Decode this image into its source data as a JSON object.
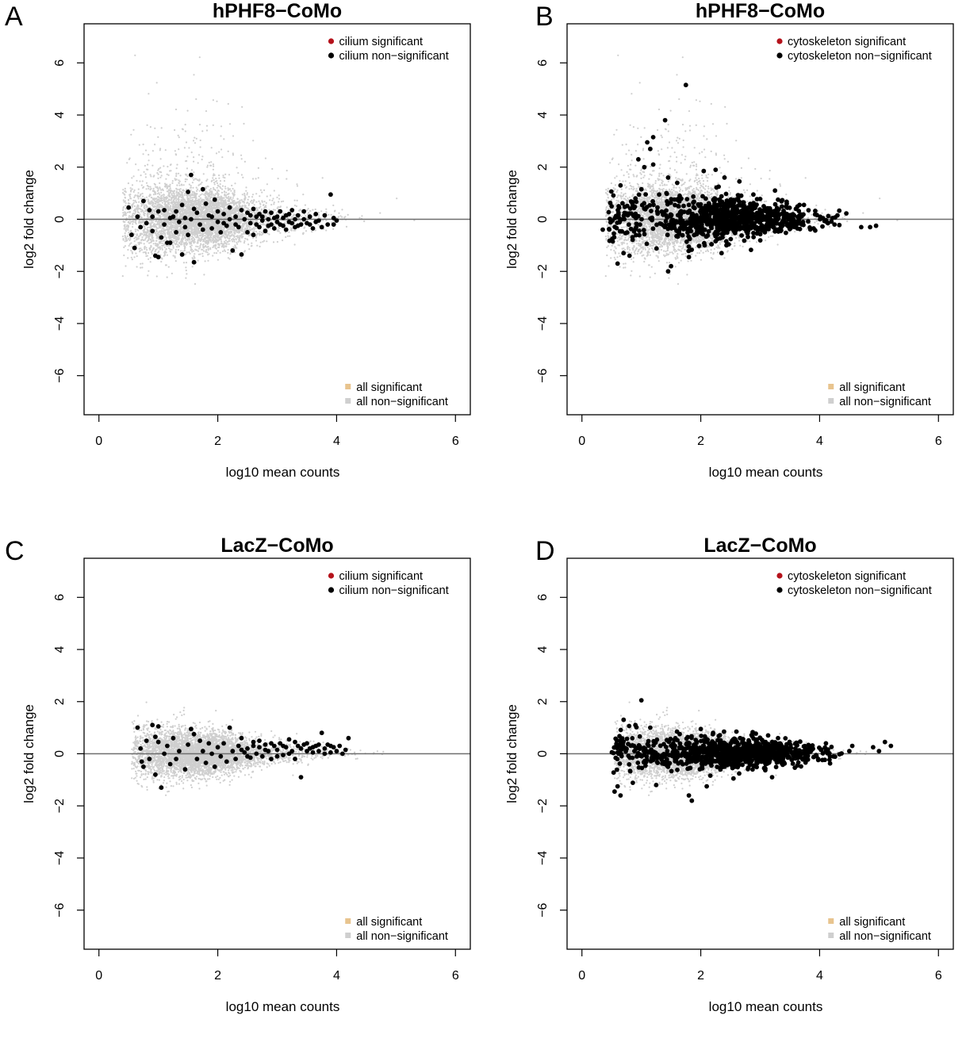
{
  "figure": {
    "colors": {
      "category_significant": "#b5121b",
      "category_nonsignificant": "#000000",
      "all_significant": "#e8c48e",
      "all_nonsignificant": "#cfcfcf",
      "zero_line": "#6e6e6e"
    }
  },
  "chart_data": [
    {
      "id": "A",
      "type": "scatter",
      "panel_letter": "A",
      "title": "hPHF8−CoMo",
      "xlabel": "log10 mean counts",
      "ylabel": "log2 fold change",
      "xlim": [
        -0.25,
        6.25
      ],
      "ylim": [
        -7.5,
        7.5
      ],
      "xticks": [
        0,
        2,
        4,
        6
      ],
      "xtick_labels": [
        "0",
        "2",
        "4",
        "6"
      ],
      "yticks": [
        -6,
        -4,
        -2,
        0,
        2,
        4,
        6
      ],
      "ytick_labels": [
        "−6",
        "−4",
        "−2",
        "0",
        "2",
        "4",
        "6"
      ],
      "reference_line_y": 0,
      "grid": false,
      "legend_top": {
        "placement": "top-right",
        "entries": [
          "cilium significant",
          "cilium non−significant"
        ]
      },
      "legend_bottom": {
        "placement": "bottom-right",
        "entries": [
          "all significant",
          "all non−significant"
        ]
      },
      "background_cloud": {
        "series": "all non-significant",
        "n": 5200,
        "x_min": 0.4,
        "x_peak": 1.8,
        "x_max": 5.6,
        "spread_low_x": 1.1,
        "spread_high_x": 0.22,
        "upper_tail": 2.2,
        "seed": 11
      },
      "highlight_series": "cilium non-significant",
      "highlight_points": [
        [
          0.5,
          0.45
        ],
        [
          0.55,
          -0.6
        ],
        [
          0.6,
          -1.1
        ],
        [
          0.65,
          0.1
        ],
        [
          0.7,
          -0.3
        ],
        [
          0.75,
          0.7
        ],
        [
          0.8,
          -0.15
        ],
        [
          0.85,
          0.35
        ],
        [
          0.9,
          -0.45
        ],
        [
          0.9,
          0.1
        ],
        [
          0.95,
          -1.4
        ],
        [
          1.0,
          -1.45
        ],
        [
          1.0,
          0.3
        ],
        [
          1.05,
          -0.7
        ],
        [
          1.1,
          -0.2
        ],
        [
          1.1,
          0.35
        ],
        [
          1.15,
          -0.9
        ],
        [
          1.2,
          -0.9
        ],
        [
          1.2,
          0.05
        ],
        [
          1.25,
          0.1
        ],
        [
          1.3,
          -0.5
        ],
        [
          1.3,
          0.3
        ],
        [
          1.35,
          -0.1
        ],
        [
          1.4,
          -1.35
        ],
        [
          1.4,
          0.55
        ],
        [
          1.45,
          -0.3
        ],
        [
          1.45,
          0.05
        ],
        [
          1.5,
          1.05
        ],
        [
          1.5,
          -0.6
        ],
        [
          1.55,
          1.7
        ],
        [
          1.55,
          0.0
        ],
        [
          1.6,
          -1.65
        ],
        [
          1.6,
          0.4
        ],
        [
          1.65,
          0.25
        ],
        [
          1.7,
          -0.2
        ],
        [
          1.75,
          1.15
        ],
        [
          1.75,
          -0.4
        ],
        [
          1.8,
          0.6
        ],
        [
          1.85,
          0.15
        ],
        [
          1.9,
          -0.35
        ],
        [
          1.95,
          0.75
        ],
        [
          2.0,
          -0.1
        ],
        [
          2.0,
          0.3
        ],
        [
          2.05,
          -0.5
        ],
        [
          2.1,
          0.2
        ],
        [
          2.15,
          -0.25
        ],
        [
          2.2,
          0.45
        ],
        [
          2.25,
          -1.2
        ],
        [
          2.3,
          0.1
        ],
        [
          2.35,
          -0.3
        ],
        [
          2.4,
          0.35
        ],
        [
          2.4,
          -1.35
        ],
        [
          2.45,
          0.0
        ],
        [
          2.5,
          -0.5
        ],
        [
          2.5,
          0.25
        ],
        [
          2.55,
          -0.15
        ],
        [
          2.6,
          0.4
        ],
        [
          2.6,
          -0.6
        ],
        [
          2.65,
          0.1
        ],
        [
          2.7,
          -0.3
        ],
        [
          2.7,
          0.2
        ],
        [
          2.75,
          -0.05
        ],
        [
          2.8,
          0.3
        ],
        [
          2.8,
          -0.45
        ],
        [
          2.85,
          0.0
        ],
        [
          2.9,
          -0.2
        ],
        [
          2.9,
          0.25
        ],
        [
          2.95,
          -0.35
        ],
        [
          3.0,
          0.1
        ],
        [
          3.0,
          -0.1
        ],
        [
          3.05,
          0.3
        ],
        [
          3.1,
          -0.25
        ],
        [
          3.1,
          0.05
        ],
        [
          3.15,
          -0.4
        ],
        [
          3.2,
          0.2
        ],
        [
          3.2,
          -0.1
        ],
        [
          3.25,
          0.35
        ],
        [
          3.3,
          -0.3
        ],
        [
          3.3,
          0.0
        ],
        [
          3.35,
          0.15
        ],
        [
          3.4,
          -0.2
        ],
        [
          3.45,
          0.3
        ],
        [
          3.5,
          -0.15
        ],
        [
          3.55,
          0.1
        ],
        [
          3.6,
          -0.35
        ],
        [
          3.65,
          0.2
        ],
        [
          3.7,
          -0.05
        ],
        [
          3.75,
          -0.3
        ],
        [
          3.8,
          0.15
        ],
        [
          3.85,
          -0.2
        ],
        [
          3.9,
          0.95
        ],
        [
          3.95,
          0.05
        ],
        [
          3.95,
          -0.2
        ],
        [
          4.0,
          -0.05
        ],
        [
          2.2,
          0.0
        ],
        [
          2.3,
          -0.2
        ],
        [
          2.55,
          0.15
        ],
        [
          2.65,
          -0.2
        ],
        [
          2.75,
          0.1
        ],
        [
          2.85,
          -0.25
        ],
        [
          2.95,
          0.05
        ],
        [
          3.05,
          -0.2
        ],
        [
          3.15,
          0.15
        ],
        [
          3.25,
          -0.15
        ],
        [
          3.35,
          -0.25
        ],
        [
          3.45,
          0.0
        ],
        [
          3.55,
          -0.2
        ],
        [
          3.65,
          -0.1
        ],
        [
          1.9,
          0.1
        ],
        [
          2.1,
          -0.15
        ]
      ]
    },
    {
      "id": "B",
      "type": "scatter",
      "panel_letter": "B",
      "title": "hPHF8−CoMo",
      "xlabel": "log10 mean counts",
      "ylabel": "log2 fold change",
      "xlim": [
        -0.25,
        6.25
      ],
      "ylim": [
        -7.5,
        7.5
      ],
      "xticks": [
        0,
        2,
        4,
        6
      ],
      "xtick_labels": [
        "0",
        "2",
        "4",
        "6"
      ],
      "yticks": [
        -6,
        -4,
        -2,
        0,
        2,
        4,
        6
      ],
      "ytick_labels": [
        "−6",
        "−4",
        "−2",
        "0",
        "2",
        "4",
        "6"
      ],
      "reference_line_y": 0,
      "grid": false,
      "legend_top": {
        "placement": "top-right",
        "entries": [
          "cytoskeleton significant",
          "cytoskeleton non−significant"
        ]
      },
      "legend_bottom": {
        "placement": "bottom-right",
        "entries": [
          "all significant",
          "all non−significant"
        ]
      },
      "background_cloud": {
        "series": "all non-significant",
        "n": 5200,
        "x_min": 0.4,
        "x_peak": 1.8,
        "x_max": 5.6,
        "spread_low_x": 1.1,
        "spread_high_x": 0.22,
        "upper_tail": 2.2,
        "seed": 11
      },
      "highlight_series": "cytoskeleton non-significant",
      "highlight_points": [
        [
          1.75,
          5.15
        ],
        [
          1.4,
          3.8
        ],
        [
          1.2,
          3.15
        ],
        [
          1.1,
          2.95
        ],
        [
          1.15,
          2.7
        ],
        [
          0.95,
          2.3
        ],
        [
          1.05,
          2.0
        ],
        [
          0.65,
          1.3
        ],
        [
          1.2,
          2.1
        ],
        [
          1.45,
          1.6
        ],
        [
          2.05,
          1.85
        ],
        [
          2.25,
          1.9
        ],
        [
          2.65,
          1.45
        ],
        [
          2.4,
          1.6
        ],
        [
          2.3,
          1.25
        ],
        [
          3.25,
          1.1
        ],
        [
          3.3,
          0.75
        ],
        [
          0.35,
          -0.4
        ],
        [
          0.5,
          0.5
        ],
        [
          0.6,
          -1.7
        ],
        [
          0.7,
          -1.3
        ],
        [
          0.8,
          -1.4
        ],
        [
          1.5,
          -1.8
        ],
        [
          1.45,
          -2.0
        ],
        [
          1.8,
          -1.45
        ],
        [
          2.35,
          -1.3
        ],
        [
          0.9,
          0.8
        ],
        [
          1.0,
          1.15
        ],
        [
          1.3,
          0.95
        ],
        [
          1.6,
          0.75
        ],
        [
          1.8,
          0.55
        ],
        [
          4.85,
          -0.3
        ],
        [
          4.95,
          -0.25
        ],
        [
          4.7,
          -0.3
        ],
        [
          4.25,
          -0.2
        ],
        [
          4.3,
          0.15
        ],
        [
          3.6,
          0.4
        ],
        [
          3.45,
          0.2
        ],
        [
          3.9,
          -0.35
        ],
        [
          3.7,
          -0.2
        ]
      ],
      "highlight_cloud": {
        "n": 900,
        "x_min": 0.45,
        "x_max": 4.45,
        "x_center": 2.75,
        "spread_low_x": 0.55,
        "spread_high_x": 0.18,
        "seed": 23
      }
    },
    {
      "id": "C",
      "type": "scatter",
      "panel_letter": "C",
      "title": "LacZ−CoMo",
      "xlabel": "log10 mean counts",
      "ylabel": "log2 fold change",
      "xlim": [
        -0.25,
        6.25
      ],
      "ylim": [
        -7.5,
        7.5
      ],
      "xticks": [
        0,
        2,
        4,
        6
      ],
      "xtick_labels": [
        "0",
        "2",
        "4",
        "6"
      ],
      "yticks": [
        -6,
        -4,
        -2,
        0,
        2,
        4,
        6
      ],
      "ytick_labels": [
        "−6",
        "−4",
        "−2",
        "0",
        "2",
        "4",
        "6"
      ],
      "reference_line_y": 0,
      "grid": false,
      "legend_top": {
        "placement": "top-right",
        "entries": [
          "cilium significant",
          "cilium non−significant"
        ]
      },
      "legend_bottom": {
        "placement": "bottom-right",
        "entries": [
          "all significant",
          "all non−significant"
        ]
      },
      "background_cloud": {
        "series": "all non-significant",
        "n": 5200,
        "x_min": 0.55,
        "x_peak": 1.8,
        "x_max": 5.6,
        "spread_low_x": 0.7,
        "spread_high_x": 0.15,
        "upper_tail": 0.6,
        "seed": 37
      },
      "highlight_series": "cilium non-significant",
      "highlight_points": [
        [
          0.65,
          1.0
        ],
        [
          0.7,
          0.2
        ],
        [
          0.72,
          -0.3
        ],
        [
          0.75,
          -0.5
        ],
        [
          0.8,
          0.5
        ],
        [
          0.85,
          -0.2
        ],
        [
          0.9,
          1.1
        ],
        [
          0.95,
          0.65
        ],
        [
          0.95,
          -0.8
        ],
        [
          1.0,
          0.45
        ],
        [
          1.0,
          1.05
        ],
        [
          1.05,
          -1.3
        ],
        [
          1.1,
          0.0
        ],
        [
          1.15,
          0.3
        ],
        [
          1.2,
          -0.4
        ],
        [
          1.25,
          0.6
        ],
        [
          1.3,
          -0.2
        ],
        [
          1.35,
          0.1
        ],
        [
          1.45,
          -0.6
        ],
        [
          1.5,
          0.35
        ],
        [
          1.55,
          0.95
        ],
        [
          1.6,
          0.75
        ],
        [
          1.65,
          -0.2
        ],
        [
          1.7,
          0.5
        ],
        [
          1.75,
          0.1
        ],
        [
          1.8,
          -0.35
        ],
        [
          1.85,
          0.4
        ],
        [
          1.9,
          0.0
        ],
        [
          1.95,
          -0.5
        ],
        [
          2.0,
          0.25
        ],
        [
          2.05,
          -0.1
        ],
        [
          2.1,
          0.4
        ],
        [
          2.15,
          -0.3
        ],
        [
          2.2,
          1.0
        ],
        [
          2.25,
          0.1
        ],
        [
          2.3,
          -0.2
        ],
        [
          2.35,
          0.3
        ],
        [
          2.4,
          0.6
        ],
        [
          2.45,
          0.05
        ],
        [
          2.5,
          0.2
        ],
        [
          2.55,
          -0.15
        ],
        [
          2.6,
          0.3
        ],
        [
          2.65,
          0.0
        ],
        [
          2.7,
          0.25
        ],
        [
          2.75,
          -0.1
        ],
        [
          2.8,
          0.35
        ],
        [
          2.85,
          0.1
        ],
        [
          2.9,
          -0.2
        ],
        [
          2.95,
          0.3
        ],
        [
          3.0,
          0.15
        ],
        [
          3.05,
          0.4
        ],
        [
          3.1,
          -0.05
        ],
        [
          3.15,
          0.25
        ],
        [
          3.2,
          0.55
        ],
        [
          3.25,
          0.1
        ],
        [
          3.3,
          -0.2
        ],
        [
          3.35,
          0.3
        ],
        [
          3.4,
          -0.9
        ],
        [
          3.45,
          0.35
        ],
        [
          3.5,
          0.1
        ],
        [
          3.55,
          0.2
        ],
        [
          3.6,
          0.05
        ],
        [
          3.65,
          0.3
        ],
        [
          3.7,
          0.1
        ],
        [
          3.75,
          0.8
        ],
        [
          3.8,
          0.2
        ],
        [
          3.85,
          0.35
        ],
        [
          3.9,
          0.05
        ],
        [
          3.95,
          0.25
        ],
        [
          4.0,
          0.1
        ],
        [
          4.05,
          0.3
        ],
        [
          4.1,
          0.0
        ],
        [
          4.15,
          0.15
        ],
        [
          4.2,
          0.6
        ],
        [
          2.6,
          0.45
        ],
        [
          2.7,
          0.5
        ],
        [
          2.8,
          0.15
        ],
        [
          2.9,
          0.4
        ],
        [
          3.0,
          -0.1
        ],
        [
          3.1,
          0.3
        ],
        [
          3.2,
          0.0
        ],
        [
          3.3,
          0.45
        ],
        [
          3.4,
          0.2
        ],
        [
          3.5,
          0.4
        ],
        [
          3.6,
          0.25
        ],
        [
          3.7,
          0.35
        ],
        [
          3.8,
          0.0
        ],
        [
          3.9,
          0.3
        ],
        [
          2.5,
          -0.1
        ],
        [
          2.4,
          0.15
        ]
      ]
    },
    {
      "id": "D",
      "type": "scatter",
      "panel_letter": "D",
      "title": "LacZ−CoMo",
      "xlabel": "log10 mean counts",
      "ylabel": "log2 fold change",
      "xlim": [
        -0.25,
        6.25
      ],
      "ylim": [
        -7.5,
        7.5
      ],
      "xticks": [
        0,
        2,
        4,
        6
      ],
      "xtick_labels": [
        "0",
        "2",
        "4",
        "6"
      ],
      "yticks": [
        -6,
        -4,
        -2,
        0,
        2,
        4,
        6
      ],
      "ytick_labels": [
        "−6",
        "−4",
        "−2",
        "0",
        "2",
        "4",
        "6"
      ],
      "reference_line_y": 0,
      "grid": false,
      "legend_top": {
        "placement": "top-right",
        "entries": [
          "cytoskeleton significant",
          "cytoskeleton non−significant"
        ]
      },
      "legend_bottom": {
        "placement": "bottom-right",
        "entries": [
          "all significant",
          "all non−significant"
        ]
      },
      "background_cloud": {
        "series": "all non-significant",
        "n": 5200,
        "x_min": 0.55,
        "x_peak": 1.8,
        "x_max": 5.6,
        "spread_low_x": 0.7,
        "spread_high_x": 0.15,
        "upper_tail": 0.6,
        "seed": 37
      },
      "highlight_series": "cytoskeleton non-significant",
      "highlight_points": [
        [
          1.0,
          2.05
        ],
        [
          0.55,
          -1.45
        ],
        [
          0.65,
          -1.6
        ],
        [
          0.6,
          -1.25
        ],
        [
          1.8,
          -1.6
        ],
        [
          1.85,
          -1.8
        ],
        [
          1.25,
          -1.2
        ],
        [
          2.1,
          -1.25
        ],
        [
          0.9,
          1.1
        ],
        [
          1.15,
          1.0
        ],
        [
          1.6,
          0.85
        ],
        [
          2.0,
          0.95
        ],
        [
          2.6,
          0.85
        ],
        [
          3.3,
          0.6
        ],
        [
          5.1,
          0.45
        ],
        [
          5.2,
          0.3
        ],
        [
          5.0,
          0.1
        ],
        [
          4.9,
          0.25
        ],
        [
          4.55,
          0.3
        ],
        [
          4.5,
          0.1
        ],
        [
          3.2,
          -0.9
        ],
        [
          2.55,
          -0.95
        ]
      ],
      "highlight_cloud": {
        "n": 950,
        "x_min": 0.5,
        "x_max": 4.6,
        "x_center": 2.8,
        "spread_low_x": 0.42,
        "spread_high_x": 0.14,
        "seed": 41
      }
    }
  ]
}
